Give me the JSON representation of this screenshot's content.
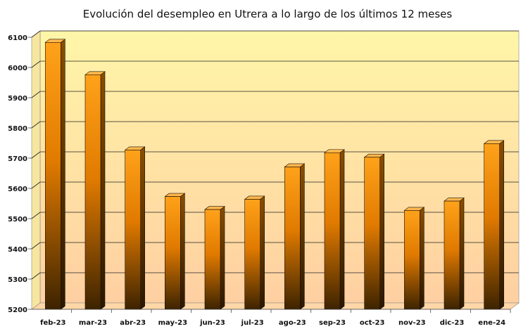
{
  "chart_data": {
    "type": "bar",
    "title": "Evolución del desempleo en Utrera a lo largo de los últimos 12 meses",
    "xlabel": "",
    "ylabel": "",
    "categories": [
      "feb-23",
      "mar-23",
      "abr-23",
      "may-23",
      "jun-23",
      "jul-23",
      "ago-23",
      "sep-23",
      "oct-23",
      "nov-23",
      "dic-23",
      "ene-24"
    ],
    "values": [
      6083,
      5976,
      5727,
      5573,
      5530,
      5564,
      5671,
      5718,
      5703,
      5527,
      5558,
      5748
    ],
    "ylim": [
      5200,
      6100
    ],
    "yticks": [
      "5200",
      "5300",
      "5400",
      "5500",
      "5600",
      "5700",
      "5800",
      "5900",
      "6000",
      "6100"
    ],
    "grid": true,
    "legend": "none",
    "colors": {
      "bar_light": "#ffa21a",
      "bar_dark": "#3d2300",
      "bar_top": "#ffb84d",
      "bar_side": "#7a4400",
      "background_top": "#fff6a8",
      "background_bottom": "#ffcfa1"
    }
  }
}
